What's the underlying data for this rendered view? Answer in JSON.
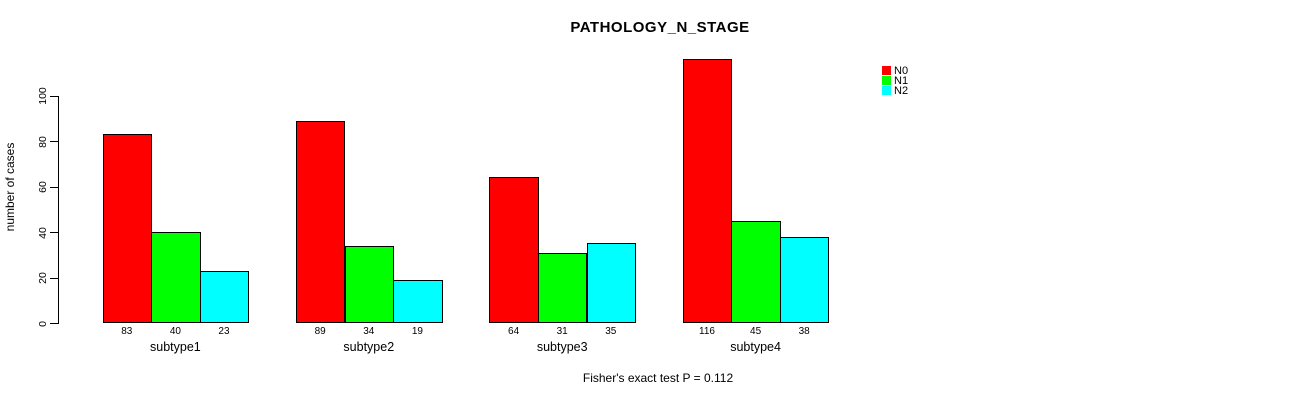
{
  "title": "PATHOLOGY_N_STAGE",
  "footer": "Fisher's exact test P = 0.112",
  "chart_data": {
    "type": "bar",
    "title": "PATHOLOGY_N_STAGE",
    "xlabel": "",
    "ylabel": "number of cases",
    "categories": [
      "subtype1",
      "subtype2",
      "subtype3",
      "subtype4"
    ],
    "series": [
      {
        "name": "N0",
        "color": "#ff0000",
        "values": [
          83,
          89,
          64,
          116
        ]
      },
      {
        "name": "N1",
        "color": "#00ff00",
        "values": [
          40,
          34,
          31,
          45
        ]
      },
      {
        "name": "N2",
        "color": "#00ffff",
        "values": [
          23,
          19,
          35,
          38
        ]
      }
    ],
    "bar_value_labels": [
      [
        "83",
        "40",
        "23"
      ],
      [
        "89",
        "34",
        "19"
      ],
      [
        "64",
        "31",
        "35"
      ],
      [
        "116",
        "45",
        "38"
      ]
    ],
    "yticks": [
      0,
      20,
      40,
      60,
      80,
      100
    ],
    "ylim": [
      0,
      116
    ],
    "grid": false,
    "legend_position": "top-right",
    "annotation": "Fisher's exact test P = 0.112"
  }
}
